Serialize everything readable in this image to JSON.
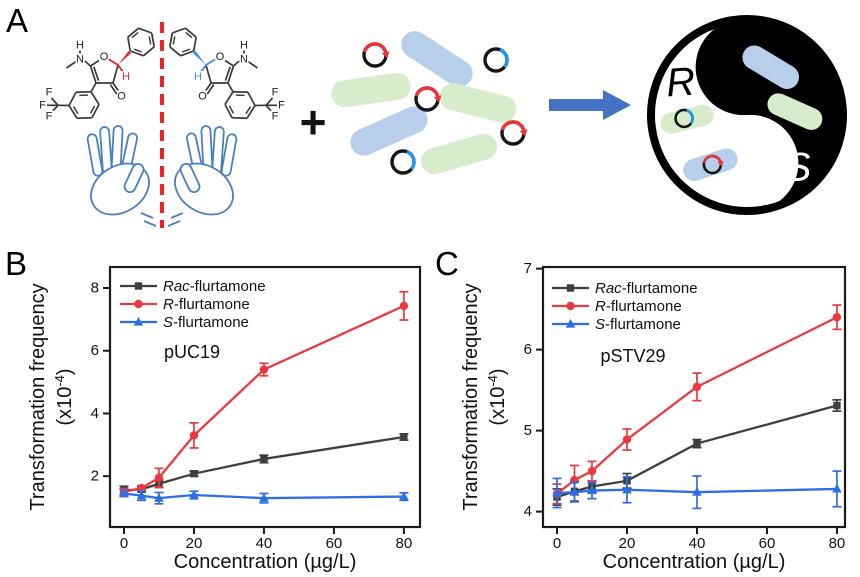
{
  "panelA": {
    "label": "A",
    "plus_sign": "+",
    "yinyang": {
      "r_label": "R",
      "s_label": "S"
    },
    "molecule": {
      "ring_o": "O",
      "carbonyl_o": "O",
      "amine_n": "N",
      "amine_h": "H",
      "stereo_h": "H",
      "f_labels": [
        "F",
        "F",
        "F"
      ]
    },
    "colors": {
      "bacteria_blue": "#b7cfeb",
      "bacteria_green": "#d7eccb",
      "plasmid_ring": "#151515",
      "plasmid_red": "#e8363c",
      "plasmid_blue": "#2196f3",
      "arrow_blue": "#4472c4",
      "hand_blue": "#4a80c0",
      "divider_red": "#ee2424",
      "highlight_red": "#e8262b",
      "highlight_blue": "#3d8ef0",
      "skeleton": "#3a3a3a"
    }
  },
  "panelB": {
    "label": "B"
  },
  "panelC": {
    "label": "C"
  },
  "chart_data": [
    {
      "type": "line",
      "panel": "B",
      "title": "pUC19",
      "xlabel": "Concentration (µg/L)",
      "ylabel_line1": "Transformation frequency",
      "ylabel_line2": {
        "pre": "(x10",
        "sup": "-4",
        "post": ")"
      },
      "x": [
        0,
        5,
        10,
        20,
        40,
        80
      ],
      "xticks": [
        0,
        20,
        40,
        60,
        80
      ],
      "yticks": [
        2,
        4,
        6,
        8
      ],
      "xlim": [
        -4,
        84.6
      ],
      "ylim": [
        0.38,
        8.67
      ],
      "grid": false,
      "legend_position": "top-left",
      "series": [
        {
          "name": "Rac-flurtamone",
          "legend_prefix": "Rac",
          "legend_rest": "-flurtamone",
          "color": "#3f3f3f",
          "marker": "square",
          "values": [
            1.55,
            1.58,
            1.76,
            2.08,
            2.55,
            3.25
          ],
          "errors": [
            0.13,
            0.08,
            0.12,
            0.08,
            0.12,
            0.1
          ]
        },
        {
          "name": "R-flurtamone",
          "legend_prefix": "R",
          "legend_rest": "-flurtamone",
          "color": "#ea3a40",
          "marker": "circle",
          "values": [
            1.5,
            1.62,
            1.95,
            3.3,
            5.4,
            7.43
          ],
          "errors": [
            0.1,
            0.08,
            0.3,
            0.4,
            0.2,
            0.45
          ]
        },
        {
          "name": "S-flurtamone",
          "legend_prefix": "S",
          "legend_rest": "-flurtamone",
          "color": "#2e6ee4",
          "marker": "triangle",
          "values": [
            1.45,
            1.38,
            1.3,
            1.4,
            1.3,
            1.35
          ],
          "errors": [
            0.1,
            0.15,
            0.18,
            0.12,
            0.15,
            0.12
          ]
        }
      ]
    },
    {
      "type": "line",
      "panel": "C",
      "title": "pSTV29",
      "xlabel": "Concentration (µg/L)",
      "ylabel_line1": "Transformation frequency",
      "ylabel_line2": {
        "pre": "(x10",
        "sup": "-4",
        "post": ")"
      },
      "x": [
        0,
        5,
        10,
        20,
        40,
        80
      ],
      "xticks": [
        0,
        20,
        40,
        60,
        80
      ],
      "yticks": [
        4,
        5,
        6,
        7
      ],
      "xlim": [
        -4,
        82.3
      ],
      "ylim": [
        3.81,
        7.02
      ],
      "grid": false,
      "legend_position": "top-left",
      "series": [
        {
          "name": "Rac-flurtamone",
          "legend_prefix": "Rac",
          "legend_rest": "-flurtamone",
          "color": "#3f3f3f",
          "marker": "square",
          "values": [
            4.18,
            4.25,
            4.31,
            4.38,
            4.84,
            5.31
          ],
          "errors": [
            0.1,
            0.12,
            0.07,
            0.09,
            0.05,
            0.07
          ]
        },
        {
          "name": "R-flurtamone",
          "legend_prefix": "R",
          "legend_rest": "-flurtamone",
          "color": "#ea3a40",
          "marker": "circle",
          "values": [
            4.22,
            4.39,
            4.5,
            4.89,
            5.54,
            6.4
          ],
          "errors": [
            0.12,
            0.18,
            0.12,
            0.13,
            0.17,
            0.15
          ]
        },
        {
          "name": "S-flurtamone",
          "legend_prefix": "S",
          "legend_rest": "-flurtamone",
          "color": "#2e6ee4",
          "marker": "triangle",
          "values": [
            4.23,
            4.24,
            4.26,
            4.27,
            4.24,
            4.28
          ],
          "errors": [
            0.18,
            0.12,
            0.1,
            0.16,
            0.2,
            0.22
          ]
        }
      ]
    }
  ]
}
